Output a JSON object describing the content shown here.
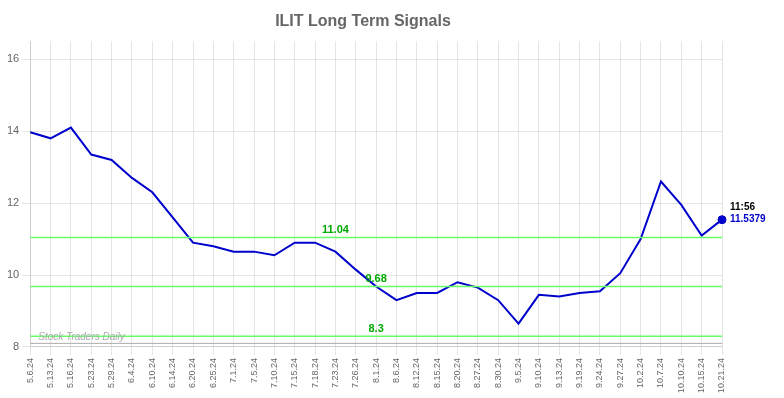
{
  "chart_data": {
    "type": "line",
    "title": "ILIT Long Term Signals",
    "categories": [
      "5.6.24",
      "5.13.24",
      "5.16.24",
      "5.23.24",
      "5.29.24",
      "6.4.24",
      "6.10.24",
      "6.14.24",
      "6.20.24",
      "6.25.24",
      "7.1.24",
      "7.5.24",
      "7.10.24",
      "7.15.24",
      "7.18.24",
      "7.23.24",
      "7.26.24",
      "8.1.24",
      "8.6.24",
      "8.12.24",
      "8.15.24",
      "8.20.24",
      "8.27.24",
      "8.30.24",
      "9.5.24",
      "9.10.24",
      "9.13.24",
      "9.19.24",
      "9.24.24",
      "9.27.24",
      "10.2.24",
      "10.7.24",
      "10.10.24",
      "10.15.24",
      "10.21.24"
    ],
    "values": [
      13.97,
      13.8,
      14.1,
      13.35,
      13.2,
      12.7,
      12.3,
      11.6,
      10.9,
      10.8,
      10.65,
      10.65,
      10.55,
      10.9,
      10.9,
      10.65,
      10.15,
      9.68,
      9.3,
      9.5,
      9.5,
      9.8,
      9.65,
      9.3,
      8.65,
      9.45,
      9.4,
      9.5,
      9.55,
      10.05,
      11.0,
      12.6,
      11.95,
      11.1,
      11.54
    ],
    "color": "#0000cc",
    "hlines": [
      {
        "value": 11.04,
        "color": "#66ff66",
        "label": "11.04",
        "label_x": "7.23.24",
        "label_color": "#00aa00"
      },
      {
        "value": 9.68,
        "color": "#66ff66",
        "label": "9.68",
        "label_x": "8.1.24",
        "label_color": "#00aa00"
      },
      {
        "value": 8.3,
        "color": "#66ff66",
        "label": "8.3",
        "label_x": "8.1.24",
        "label_color": "#00aa00"
      },
      {
        "value": 8.1,
        "color": "#aaaaaa"
      }
    ],
    "last_point": {
      "x": "10.21.24",
      "y": 11.5379,
      "label": "11.5379",
      "time": "11:56",
      "color": "#0000cc"
    },
    "watermark": {
      "text": "Stock Traders Daily",
      "color": "#aaaaaa"
    },
    "ylim": [
      8,
      16.5
    ],
    "yticks": [
      8,
      10,
      12,
      14,
      16
    ],
    "grid": true
  }
}
